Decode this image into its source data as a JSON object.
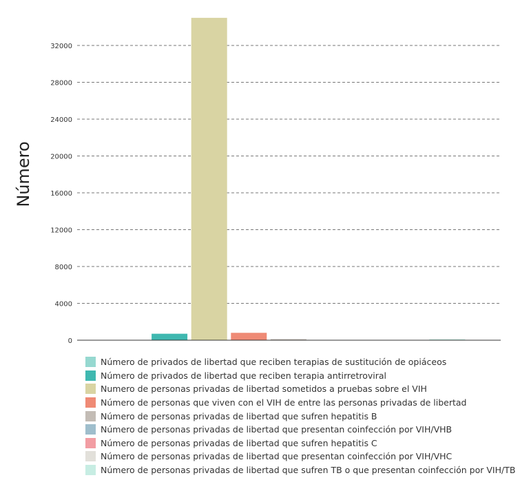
{
  "chart_data": {
    "type": "bar",
    "ylabel": "Número",
    "xlabel": "",
    "ylim": [
      0,
      35000
    ],
    "yticks": [
      0,
      4000,
      8000,
      12000,
      16000,
      20000,
      24000,
      28000,
      32000
    ],
    "grid": true,
    "legend_position": "bottom",
    "series": [
      {
        "name": "Número de privados de libertad que reciben terapias de sustitución de opiáceos",
        "color": "#96d8d0",
        "value": 0
      },
      {
        "name": "Número de privados de libertad que reciben terapia antirretroviral",
        "color": "#3fb8b0",
        "value": 700
      },
      {
        "name": "Numero de personas privadas de libertad sometidos a pruebas sobre el VIH",
        "color": "#d9d4a3",
        "value": 35000
      },
      {
        "name": "Número de personas que viven con el VIH de entre las personas privadas de libertad",
        "color": "#ef8a75",
        "value": 800
      },
      {
        "name": "Número de personas privadas de libertad que sufren hepatitis B",
        "color": "#c3bcb5",
        "value": 40
      },
      {
        "name": "Número de personas privadas de libertad que presentan coinfección por VIH/VHB",
        "color": "#9fbecc",
        "value": 0
      },
      {
        "name": "Número de personas privadas de libertad que sufren hepatitis C",
        "color": "#f29da3",
        "value": 0
      },
      {
        "name": "Número de personas privadas de libertad que presentan coinfección por VIH/VHC",
        "color": "#e2e0da",
        "value": 0
      },
      {
        "name": "Número de personas privadas de libertad que sufren TB o que presentan coinfección por VIH/TB",
        "color": "#c7ede3",
        "value": 80
      }
    ]
  }
}
